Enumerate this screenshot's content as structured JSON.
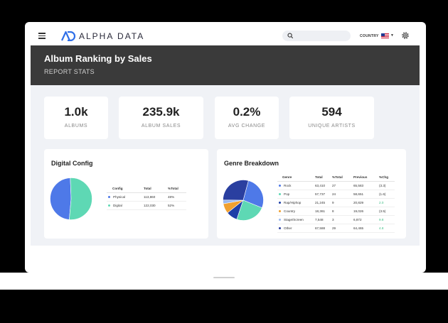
{
  "app": {
    "name": "ALPHA DATA"
  },
  "header": {
    "country_label": "COUNTRY"
  },
  "hero": {
    "title": "Album Ranking by Sales",
    "subtitle": "REPORT STATS"
  },
  "stats": [
    {
      "value": "1.0k",
      "label": "ALBUMS"
    },
    {
      "value": "235.9k",
      "label": "ALBUM SALES"
    },
    {
      "value": "0.2%",
      "label": "AVG CHANGE"
    },
    {
      "value": "594",
      "label": "UNIQUE ARTISTS"
    }
  ],
  "digital_config": {
    "title": "Digital Config",
    "columns": [
      "Config",
      "Total",
      "%Total"
    ],
    "rows": [
      {
        "name": "Physical",
        "total": "113,860",
        "pct": "48%",
        "color": "#4e79e8"
      },
      {
        "name": "Digital",
        "total": "122,030",
        "pct": "52%",
        "color": "#5ed8b4"
      }
    ]
  },
  "genre": {
    "title": "Genre Breakdown",
    "columns": [
      "Genre",
      "Total",
      "%Total",
      "Previous",
      "%Chg"
    ],
    "rows": [
      {
        "name": "Rock",
        "total": "63,410",
        "pct": "27",
        "prev": "65,583",
        "chg": "(3.3)",
        "color": "#4e79e8",
        "pos": false
      },
      {
        "name": "Pop",
        "total": "57,737",
        "pct": "24",
        "prev": "58,651",
        "chg": "(1.6)",
        "color": "#5ed8b4",
        "pos": false
      },
      {
        "name": "Rap/Hiphop",
        "total": "21,245",
        "pct": "9",
        "prev": "20,829",
        "chg": "2.0",
        "color": "#1e3fa8",
        "pos": true
      },
      {
        "name": "Country",
        "total": "18,361",
        "pct": "8",
        "prev": "19,026",
        "chg": "(3.5)",
        "color": "#f0a030",
        "pos": false
      },
      {
        "name": "Stage/Screen",
        "total": "7,548",
        "pct": "3",
        "prev": "6,872",
        "chg": "9.8",
        "color": "#9ab8f0",
        "pos": true
      },
      {
        "name": "Other",
        "total": "67,588",
        "pct": "29",
        "prev": "64,465",
        "chg": "4.8",
        "color": "#2a3fa0",
        "pos": true
      }
    ]
  },
  "chart_data": [
    {
      "type": "pie",
      "title": "Digital Config",
      "categories": [
        "Physical",
        "Digital"
      ],
      "values": [
        48,
        52
      ],
      "colors": [
        "#4e79e8",
        "#5ed8b4"
      ]
    },
    {
      "type": "pie",
      "title": "Genre Breakdown",
      "categories": [
        "Rock",
        "Pop",
        "Rap/Hiphop",
        "Country",
        "Stage/Screen",
        "Other"
      ],
      "values": [
        27,
        24,
        9,
        8,
        3,
        29
      ],
      "colors": [
        "#4e79e8",
        "#5ed8b4",
        "#1e3fa8",
        "#f0a030",
        "#9ab8f0",
        "#2a3fa0"
      ]
    }
  ]
}
